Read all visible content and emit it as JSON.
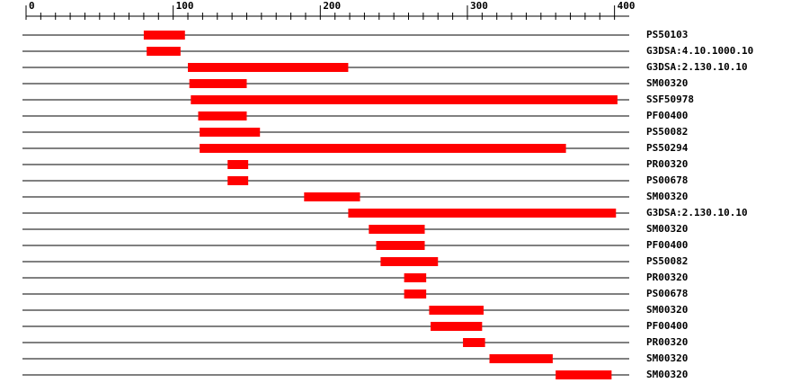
{
  "chart_data": {
    "type": "range",
    "categories": [
      "PS50103",
      "G3DSA:4.10.1000.10",
      "G3DSA:2.130.10.10",
      "SM00320",
      "SSF50978",
      "PF00400",
      "PS50082",
      "PS50294",
      "PR00320",
      "PS00678",
      "SM00320",
      "G3DSA:2.130.10.10",
      "SM00320",
      "PF00400",
      "PS50082",
      "PR00320",
      "PS00678",
      "SM00320",
      "PF00400",
      "PR00320",
      "SM00320",
      "SM00320"
    ],
    "start": [
      80,
      82,
      110,
      111,
      112,
      117,
      118,
      118,
      137,
      137,
      189,
      219,
      233,
      238,
      241,
      257,
      257,
      274,
      275,
      297,
      315,
      360
    ],
    "end": [
      108,
      105,
      219,
      150,
      402,
      150,
      159,
      367,
      151,
      151,
      227,
      401,
      271,
      271,
      280,
      272,
      272,
      311,
      310,
      312,
      358,
      398
    ],
    "color": "#ff0000",
    "xlim": [
      0,
      410
    ],
    "xticks": [
      0,
      100,
      200,
      300,
      400
    ],
    "minor_xticks": [
      10,
      20,
      30,
      40,
      50,
      60,
      70,
      80,
      90,
      110,
      120,
      130,
      140,
      150,
      160,
      170,
      180,
      190,
      210,
      220,
      230,
      240,
      250,
      260,
      270,
      280,
      290,
      310,
      320,
      330,
      340,
      350,
      360,
      370,
      380,
      390
    ]
  }
}
